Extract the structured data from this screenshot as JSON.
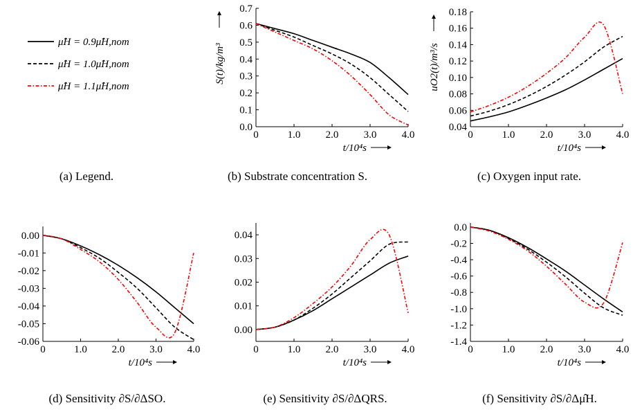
{
  "legend": {
    "entries": [
      {
        "label": "μ̂H = 0.9μ̂H,nom",
        "color": "#000000",
        "dash": "solid"
      },
      {
        "label": "μ̂H = 1.0μ̂H,nom",
        "color": "#000000",
        "dash": "dashed"
      },
      {
        "label": "μ̂H = 1.1μ̂H,nom",
        "color": "#ff0000",
        "dash": "dashdot"
      }
    ]
  },
  "captions": {
    "a": "(a) Legend.",
    "b": "(b) Substrate concentration S.",
    "c": "(c) Oxygen input rate.",
    "d": "(d) Sensitivity ∂S/∂ΔSO.",
    "e": "(e) Sensitivity ∂S/∂ΔQRS.",
    "f": "(f) Sensitivity ∂S/∂Δμ̂H."
  },
  "chart_data": [
    {
      "id": "b",
      "type": "line",
      "xlabel": "t/10⁴s",
      "ylabel": "S(t)/kg/m³",
      "xlim": [
        0,
        4
      ],
      "ylim": [
        0,
        0.7
      ],
      "xticks": [
        "0",
        "1.0",
        "2.0",
        "3.0",
        "4.0"
      ],
      "yticks": [
        "0.0",
        "0.1",
        "0.2",
        "0.3",
        "0.4",
        "0.5",
        "0.6",
        "0.7"
      ],
      "x": [
        0,
        0.5,
        1.0,
        1.5,
        2.0,
        2.5,
        3.0,
        3.5,
        4.0
      ],
      "series": [
        {
          "name": "μ̂H = 0.9μ̂H,nom",
          "values": [
            0.61,
            0.58,
            0.55,
            0.51,
            0.47,
            0.43,
            0.38,
            0.29,
            0.19
          ]
        },
        {
          "name": "μ̂H = 1.0μ̂H,nom",
          "values": [
            0.61,
            0.57,
            0.53,
            0.48,
            0.43,
            0.37,
            0.29,
            0.19,
            0.09
          ]
        },
        {
          "name": "μ̂H = 1.1μ̂H,nom",
          "values": [
            0.61,
            0.56,
            0.51,
            0.46,
            0.39,
            0.3,
            0.19,
            0.07,
            0.01
          ]
        }
      ]
    },
    {
      "id": "c",
      "type": "line",
      "xlabel": "t/10⁴s",
      "ylabel": "uO2(t)/m³/s",
      "xlim": [
        0,
        4
      ],
      "ylim": [
        0.04,
        0.18
      ],
      "xticks": [
        "0",
        "1.0",
        "2.0",
        "3.0",
        "4.0"
      ],
      "yticks": [
        "0.04",
        "0.06",
        "0.08",
        "0.10",
        "0.12",
        "0.14",
        "0.16",
        "0.18"
      ],
      "x": [
        0,
        0.5,
        1.0,
        1.5,
        2.0,
        2.5,
        3.0,
        3.5,
        4.0
      ],
      "series": [
        {
          "name": "μ̂H = 0.9μ̂H,nom",
          "values": [
            0.047,
            0.052,
            0.058,
            0.066,
            0.075,
            0.085,
            0.097,
            0.11,
            0.123
          ]
        },
        {
          "name": "μ̂H = 1.0μ̂H,nom",
          "values": [
            0.053,
            0.059,
            0.067,
            0.077,
            0.089,
            0.103,
            0.119,
            0.137,
            0.15
          ]
        },
        {
          "name": "μ̂H = 1.1μ̂H,nom",
          "values": [
            0.058,
            0.066,
            0.076,
            0.089,
            0.105,
            0.124,
            0.149,
            0.164,
            0.08
          ]
        }
      ]
    },
    {
      "id": "d",
      "type": "line",
      "xlabel": "t/10⁴s",
      "ylabel": "",
      "xlim": [
        0,
        4
      ],
      "ylim": [
        -0.06,
        0.005
      ],
      "xticks": [
        "0",
        "1.0",
        "2.0",
        "3.0",
        "4.0"
      ],
      "yticks": [
        "0.00",
        "-0.01",
        "-0.02",
        "-0.03",
        "-0.04",
        "-0.05",
        "-0.06"
      ],
      "x": [
        0,
        0.5,
        1.0,
        1.5,
        2.0,
        2.5,
        3.0,
        3.5,
        4.0
      ],
      "series": [
        {
          "name": "μ̂H = 0.9μ̂H,nom",
          "values": [
            0,
            -0.002,
            -0.006,
            -0.011,
            -0.017,
            -0.024,
            -0.032,
            -0.041,
            -0.05
          ]
        },
        {
          "name": "μ̂H = 1.0μ̂H,nom",
          "values": [
            0,
            -0.002,
            -0.007,
            -0.013,
            -0.021,
            -0.03,
            -0.041,
            -0.052,
            -0.059
          ]
        },
        {
          "name": "μ̂H = 1.1μ̂H,nom",
          "values": [
            0,
            -0.002,
            -0.008,
            -0.015,
            -0.025,
            -0.038,
            -0.052,
            -0.055,
            -0.01
          ]
        }
      ]
    },
    {
      "id": "e",
      "type": "line",
      "xlabel": "t/10⁴s",
      "ylabel": "",
      "xlim": [
        0,
        4
      ],
      "ylim": [
        -0.005,
        0.045
      ],
      "xticks": [
        "0",
        "1.0",
        "2.0",
        "3.0",
        "4.0"
      ],
      "yticks": [
        "0.00",
        "0.01",
        "0.02",
        "0.03",
        "0.04"
      ],
      "x": [
        0,
        0.5,
        1.0,
        1.5,
        2.0,
        2.5,
        3.0,
        3.5,
        4.0
      ],
      "series": [
        {
          "name": "μ̂H = 0.9μ̂H,nom",
          "values": [
            0,
            0.001,
            0.004,
            0.008,
            0.013,
            0.018,
            0.023,
            0.028,
            0.031
          ]
        },
        {
          "name": "μ̂H = 1.0μ̂H,nom",
          "values": [
            0,
            0.001,
            0.004,
            0.009,
            0.015,
            0.022,
            0.029,
            0.036,
            0.037
          ]
        },
        {
          "name": "μ̂H = 1.1μ̂H,nom",
          "values": [
            0,
            0.001,
            0.005,
            0.011,
            0.018,
            0.027,
            0.038,
            0.04,
            0.007
          ]
        }
      ]
    },
    {
      "id": "f",
      "type": "line",
      "xlabel": "t/10⁴s",
      "ylabel": "",
      "xlim": [
        0,
        4
      ],
      "ylim": [
        -1.4,
        0.05
      ],
      "xticks": [
        "0",
        "1.0",
        "2.0",
        "3.0",
        "4.0"
      ],
      "yticks": [
        "0.0",
        "-0.2",
        "-0.4",
        "-0.6",
        "-0.8",
        "-1.0",
        "-1.2",
        "-1.4"
      ],
      "x": [
        0,
        0.5,
        1.0,
        1.5,
        2.0,
        2.5,
        3.0,
        3.5,
        4.0
      ],
      "series": [
        {
          "name": "μ̂H = 0.9μ̂H,nom",
          "values": [
            0,
            -0.04,
            -0.13,
            -0.25,
            -0.39,
            -0.54,
            -0.71,
            -0.88,
            -1.04
          ]
        },
        {
          "name": "μ̂H = 1.0μ̂H,nom",
          "values": [
            0,
            -0.04,
            -0.14,
            -0.27,
            -0.43,
            -0.61,
            -0.81,
            -0.99,
            -1.08
          ]
        },
        {
          "name": "μ̂H = 1.1μ̂H,nom",
          "values": [
            0,
            -0.05,
            -0.15,
            -0.29,
            -0.48,
            -0.7,
            -0.92,
            -0.93,
            -0.19
          ]
        }
      ]
    }
  ]
}
